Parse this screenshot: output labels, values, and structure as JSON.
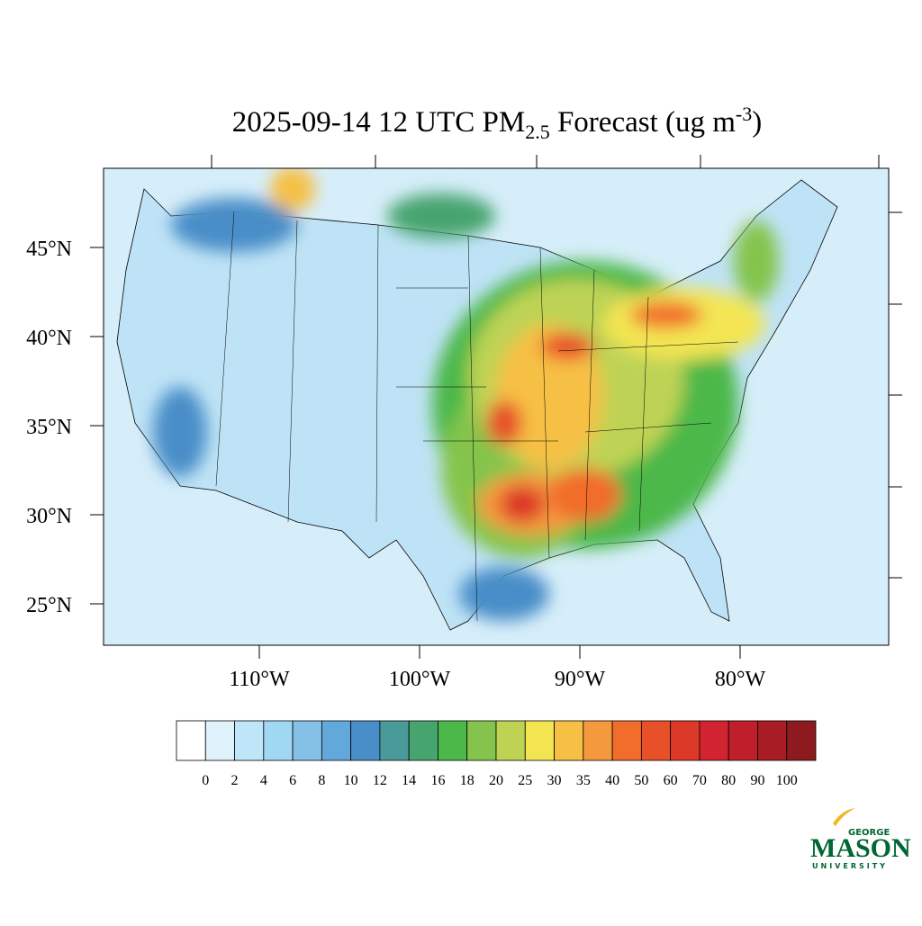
{
  "title": {
    "main": "2025-09-14 12 UTC PM",
    "subscript": "2.5",
    "middle": " Forecast (ug m",
    "superscript": "-3",
    "end": ")"
  },
  "latitude_ticks": [
    {
      "value": 45,
      "label": "45°N"
    },
    {
      "value": 40,
      "label": "40°N"
    },
    {
      "value": 35,
      "label": "35°N"
    },
    {
      "value": 30,
      "label": "30°N"
    },
    {
      "value": 25,
      "label": "25°N"
    }
  ],
  "longitude_ticks": [
    {
      "value": -110,
      "label": "110°W"
    },
    {
      "value": -100,
      "label": "100°W"
    },
    {
      "value": -90,
      "label": "90°W"
    },
    {
      "value": -80,
      "label": "80°W"
    }
  ],
  "colorbar": {
    "levels": [
      0,
      2,
      4,
      6,
      8,
      10,
      12,
      14,
      16,
      18,
      20,
      25,
      30,
      35,
      40,
      50,
      60,
      70,
      80,
      90,
      100
    ],
    "colors": [
      "#ffffff",
      "#dff2fb",
      "#bfe6f8",
      "#a0d8f4",
      "#85c0e6",
      "#63a8db",
      "#4a8ec8",
      "#4a9a9a",
      "#46a46e",
      "#4cb84a",
      "#84c44c",
      "#bed354",
      "#f3e552",
      "#f6c045",
      "#f5993e",
      "#f26c2c",
      "#e8502a",
      "#dc3928",
      "#d22330",
      "#bf1f2a",
      "#a81d24",
      "#8d1a1e"
    ]
  },
  "logo": {
    "top": "GEORGE",
    "middle": "MASON",
    "bottom": "UNIVERSITY"
  }
}
